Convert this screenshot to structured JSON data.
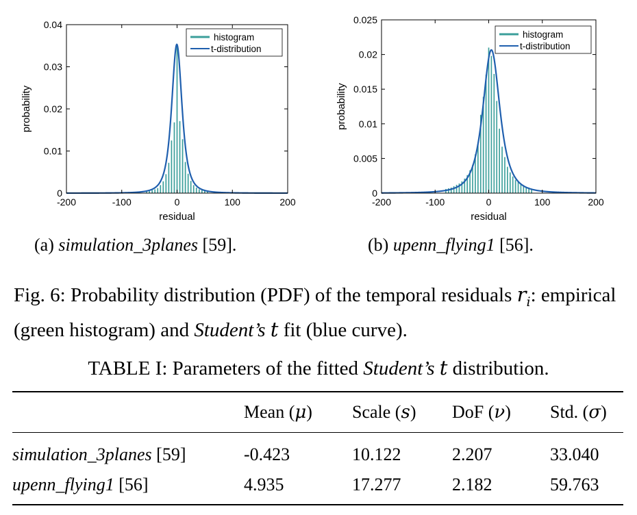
{
  "chart_data": [
    {
      "type": "bar",
      "title": "",
      "xlabel": "residual",
      "ylabel": "probability",
      "xlim": [
        -200,
        200
      ],
      "ylim": [
        0,
        0.04
      ],
      "x_ticks": [
        -200,
        -100,
        0,
        100,
        200
      ],
      "y_ticks": [
        0,
        0.01,
        0.02,
        0.03,
        0.04
      ],
      "x_tick_labels": [
        "-200",
        "-100",
        "0",
        "100",
        "200"
      ],
      "y_tick_labels": [
        "0",
        "0.01",
        "0.02",
        "0.03",
        "0.04"
      ],
      "grid": false,
      "legend_position": "top-right",
      "histogram": {
        "name": "histogram",
        "color": "#3a9e9a",
        "x": [
          -55,
          -50,
          -45,
          -40,
          -35,
          -30,
          -25,
          -20,
          -15,
          -10,
          -5,
          0,
          5,
          10,
          15,
          20,
          25,
          30,
          35,
          40,
          45,
          50,
          55
        ],
        "values": [
          0.0004,
          0.0005,
          0.0007,
          0.0009,
          0.0012,
          0.0019,
          0.0028,
          0.0045,
          0.0072,
          0.0125,
          0.0168,
          0.0352,
          0.0171,
          0.0128,
          0.0074,
          0.0046,
          0.0029,
          0.0019,
          0.0013,
          0.0009,
          0.0007,
          0.0005,
          0.0004
        ]
      },
      "t_distribution": {
        "name": "t-distribution",
        "color": "#1f5fae",
        "mean": -0.423,
        "scale": 10.122,
        "dof": 2.207
      }
    },
    {
      "type": "bar",
      "title": "",
      "xlabel": "residual",
      "ylabel": "probability",
      "xlim": [
        -200,
        200
      ],
      "ylim": [
        0,
        0.025
      ],
      "x_ticks": [
        -200,
        -100,
        0,
        100,
        200
      ],
      "y_ticks": [
        0,
        0.005,
        0.01,
        0.015,
        0.02,
        0.025
      ],
      "x_tick_labels": [
        "-200",
        "-100",
        "0",
        "100",
        "200"
      ],
      "y_tick_labels": [
        "0",
        "0.005",
        "0.01",
        "0.015",
        "0.02",
        "0.025"
      ],
      "grid": false,
      "legend_position": "top-right",
      "histogram": {
        "name": "histogram",
        "color": "#3a9e9a",
        "x": [
          -80,
          -75,
          -70,
          -65,
          -60,
          -55,
          -50,
          -45,
          -40,
          -35,
          -30,
          -25,
          -20,
          -15,
          -10,
          -5,
          0,
          5,
          10,
          15,
          20,
          25,
          30,
          35,
          40,
          45,
          50,
          55,
          60,
          65,
          70,
          75,
          80
        ],
        "values": [
          0.0006,
          0.0007,
          0.0008,
          0.001,
          0.0012,
          0.0014,
          0.0017,
          0.0021,
          0.0026,
          0.0033,
          0.0041,
          0.0056,
          0.0073,
          0.0113,
          0.0139,
          0.0171,
          0.021,
          0.0198,
          0.0172,
          0.0133,
          0.0093,
          0.0067,
          0.0052,
          0.0038,
          0.003,
          0.0024,
          0.0019,
          0.0016,
          0.0013,
          0.0011,
          0.0009,
          0.0008,
          0.0006
        ]
      },
      "t_distribution": {
        "name": "t-distribution",
        "color": "#1f5fae",
        "mean": 4.935,
        "scale": 17.277,
        "dof": 2.182
      }
    }
  ],
  "subcaptions": [
    {
      "prefix": "(a) ",
      "name": "simulation_3planes",
      "ref": " [59]."
    },
    {
      "prefix": "(b) ",
      "name": "upenn_flying1",
      "ref": " [56]."
    }
  ],
  "figure_caption": {
    "p1": "Fig. 6: Probability distribution (PDF) of the temporal residuals ",
    "math_r": "r",
    "math_i": "i",
    "p2": ": empirical (green histogram) and ",
    "student": "Student’s",
    "math_t": "t",
    "p3": " fit (blue curve)."
  },
  "table_caption": {
    "p1": "TABLE I: Parameters of the fitted ",
    "student": "Student’s",
    "math_t": "t",
    "p2": " distribution."
  },
  "table": {
    "headers": [
      {
        "text": "",
        "sym": "",
        "close": ""
      },
      {
        "text": "Mean (",
        "sym": "μ",
        "close": ")"
      },
      {
        "text": "Scale (",
        "sym": "s",
        "close": ")"
      },
      {
        "text": "DoF (",
        "sym": "ν",
        "close": ")"
      },
      {
        "text": "Std. (",
        "sym": "σ",
        "close": ")"
      }
    ],
    "rows": [
      {
        "name": "simulation_3planes",
        "ref": " [59]",
        "values": [
          "-0.423",
          "10.122",
          "2.207",
          "33.040"
        ]
      },
      {
        "name": "upenn_flying1",
        "ref": " [56]",
        "values": [
          "4.935",
          "17.277",
          "2.182",
          "59.763"
        ]
      }
    ]
  }
}
